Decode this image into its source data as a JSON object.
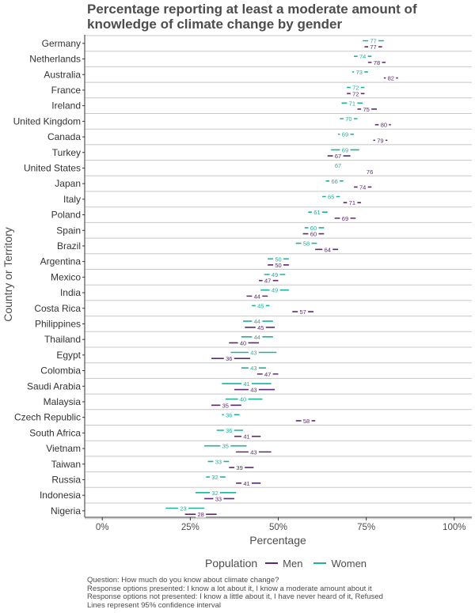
{
  "chart_data": {
    "type": "dot-interval",
    "title": "Percentage reporting at least a moderate amount of knowledge of climate change by gender",
    "xlabel": "Percentage",
    "ylabel": "Country or Territory",
    "xlim": [
      -5,
      105
    ],
    "xticks": [
      {
        "value": 0,
        "label": "0%"
      },
      {
        "value": 25,
        "label": "25%"
      },
      {
        "value": 50,
        "label": "50%"
      },
      {
        "value": 75,
        "label": "75%"
      },
      {
        "value": 100,
        "label": "100%"
      }
    ],
    "legend_title": "Population",
    "series": [
      {
        "name": "Men",
        "color": "#5e2a6e"
      },
      {
        "name": "Women",
        "color": "#21b199"
      }
    ],
    "rows": [
      {
        "country": "Germany",
        "women": {
          "value": 77,
          "lo": 74,
          "hi": 80
        },
        "men": {
          "value": 77,
          "lo": 74.5,
          "hi": 79.5
        }
      },
      {
        "country": "Netherlands",
        "women": {
          "value": 74,
          "lo": 71.5,
          "hi": 76.5
        },
        "men": {
          "value": 78,
          "lo": 75.5,
          "hi": 80.5
        }
      },
      {
        "country": "Australia",
        "women": {
          "value": 73,
          "lo": 71,
          "hi": 75.5
        },
        "men": {
          "value": 82,
          "lo": 80,
          "hi": 84
        }
      },
      {
        "country": "France",
        "women": {
          "value": 72,
          "lo": 69.5,
          "hi": 74.5
        },
        "men": {
          "value": 72,
          "lo": 69.5,
          "hi": 74.5
        }
      },
      {
        "country": "Ireland",
        "women": {
          "value": 71,
          "lo": 68,
          "hi": 74
        },
        "men": {
          "value": 75,
          "lo": 72.5,
          "hi": 78
        }
      },
      {
        "country": "United Kingdom",
        "women": {
          "value": 70,
          "lo": 67.5,
          "hi": 72.5
        },
        "men": {
          "value": 80,
          "lo": 77.5,
          "hi": 82
        }
      },
      {
        "country": "Canada",
        "women": {
          "value": 69,
          "lo": 67,
          "hi": 71.5
        },
        "men": {
          "value": 79,
          "lo": 77,
          "hi": 81
        }
      },
      {
        "country": "Turkey",
        "women": {
          "value": 69,
          "lo": 65,
          "hi": 73
        },
        "men": {
          "value": 67,
          "lo": 64,
          "hi": 70.5
        }
      },
      {
        "country": "United States",
        "women": {
          "value": 67,
          "lo": 66,
          "hi": 68
        },
        "men": {
          "value": 76,
          "lo": 75,
          "hi": 77
        }
      },
      {
        "country": "Japan",
        "women": {
          "value": 66,
          "lo": 63.5,
          "hi": 68.5
        },
        "men": {
          "value": 74,
          "lo": 71.5,
          "hi": 76.5
        }
      },
      {
        "country": "Italy",
        "women": {
          "value": 65,
          "lo": 62.5,
          "hi": 67.5
        },
        "men": {
          "value": 71,
          "lo": 68.5,
          "hi": 73.5
        }
      },
      {
        "country": "Poland",
        "women": {
          "value": 61,
          "lo": 58.5,
          "hi": 64
        },
        "men": {
          "value": 69,
          "lo": 66,
          "hi": 72
        }
      },
      {
        "country": "Spain",
        "women": {
          "value": 60,
          "lo": 57.5,
          "hi": 63
        },
        "men": {
          "value": 60,
          "lo": 57,
          "hi": 63
        }
      },
      {
        "country": "Brazil",
        "women": {
          "value": 58,
          "lo": 55,
          "hi": 61
        },
        "men": {
          "value": 64,
          "lo": 60.5,
          "hi": 67
        }
      },
      {
        "country": "Argentina",
        "women": {
          "value": 50,
          "lo": 47,
          "hi": 53
        },
        "men": {
          "value": 50,
          "lo": 47,
          "hi": 53
        }
      },
      {
        "country": "Mexico",
        "women": {
          "value": 49,
          "lo": 46,
          "hi": 52
        },
        "men": {
          "value": 47,
          "lo": 44.5,
          "hi": 50
        }
      },
      {
        "country": "India",
        "women": {
          "value": 49,
          "lo": 45,
          "hi": 53
        },
        "men": {
          "value": 44,
          "lo": 41,
          "hi": 47
        }
      },
      {
        "country": "Costa Rica",
        "women": {
          "value": 45,
          "lo": 42.5,
          "hi": 47.5
        },
        "men": {
          "value": 57,
          "lo": 54,
          "hi": 60
        }
      },
      {
        "country": "Philippines",
        "women": {
          "value": 44,
          "lo": 40,
          "hi": 48.5
        },
        "men": {
          "value": 45,
          "lo": 40.5,
          "hi": 49
        }
      },
      {
        "country": "Thailand",
        "women": {
          "value": 44,
          "lo": 39.5,
          "hi": 48.5
        },
        "men": {
          "value": 40,
          "lo": 36,
          "hi": 44.5
        }
      },
      {
        "country": "Egypt",
        "women": {
          "value": 43,
          "lo": 36.5,
          "hi": 49.5
        },
        "men": {
          "value": 36,
          "lo": 31,
          "hi": 42
        }
      },
      {
        "country": "Colombia",
        "women": {
          "value": 43,
          "lo": 39.5,
          "hi": 46.5
        },
        "men": {
          "value": 47,
          "lo": 44,
          "hi": 50
        }
      },
      {
        "country": "Saudi Arabia",
        "women": {
          "value": 41,
          "lo": 34,
          "hi": 48
        },
        "men": {
          "value": 43,
          "lo": 37.5,
          "hi": 49
        }
      },
      {
        "country": "Malaysia",
        "women": {
          "value": 40,
          "lo": 35,
          "hi": 45.5
        },
        "men": {
          "value": 35,
          "lo": 31,
          "hi": 39.5
        }
      },
      {
        "country": "Czech Republic",
        "women": {
          "value": 36,
          "lo": 34,
          "hi": 39
        },
        "men": {
          "value": 58,
          "lo": 55,
          "hi": 60.5
        }
      },
      {
        "country": "South Africa",
        "women": {
          "value": 36,
          "lo": 32.5,
          "hi": 40
        },
        "men": {
          "value": 41,
          "lo": 37.5,
          "hi": 45
        }
      },
      {
        "country": "Vietnam",
        "women": {
          "value": 35,
          "lo": 29,
          "hi": 41
        },
        "men": {
          "value": 43,
          "lo": 38,
          "hi": 48
        }
      },
      {
        "country": "Taiwan",
        "women": {
          "value": 33,
          "lo": 30,
          "hi": 36
        },
        "men": {
          "value": 39,
          "lo": 36,
          "hi": 43
        }
      },
      {
        "country": "Russia",
        "women": {
          "value": 32,
          "lo": 29.5,
          "hi": 35
        },
        "men": {
          "value": 41,
          "lo": 38,
          "hi": 45
        }
      },
      {
        "country": "Indonesia",
        "women": {
          "value": 32,
          "lo": 26.5,
          "hi": 38
        },
        "men": {
          "value": 33,
          "lo": 29,
          "hi": 37.5
        }
      },
      {
        "country": "Nigeria",
        "women": {
          "value": 23,
          "lo": 18,
          "hi": 29
        },
        "men": {
          "value": 28,
          "lo": 23.5,
          "hi": 32.5
        }
      }
    ],
    "notes": [
      "Question: How much do you know about climate change?",
      "Response options presented:  I know a lot about it, I know a moderate amount about it",
      "Response options not presented: I know a little about it, I have never heard of it, Refused",
      "Lines represent 95% confidence interval"
    ]
  }
}
